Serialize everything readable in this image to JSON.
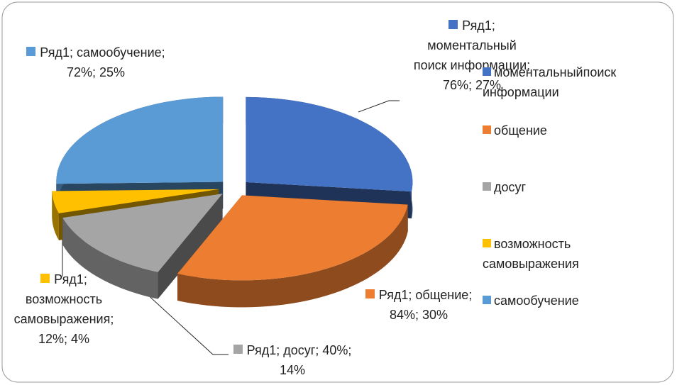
{
  "chart_data": {
    "type": "pie",
    "series_name": "Ряд1",
    "categories": [
      "моментальныйпоиск информации",
      "общение",
      "досуг",
      "возможность самовыражения",
      "самообучение"
    ],
    "values": [
      76,
      84,
      40,
      12,
      72
    ],
    "value_labels": [
      "Ряд1; моментальный поиск информации; 76%; 27%",
      "Ряд1; общение; 84%; 30%",
      "Ряд1; досуг; 40%; 14%",
      "Ряд1; возможность самовыражения; 12%; 4%",
      "Ряд1; самообучение; 72%; 25%"
    ],
    "colors": [
      "#4472c4",
      "#ed7d31",
      "#a5a5a5",
      "#ffc000",
      "#5b9bd5"
    ],
    "legend": "right"
  }
}
